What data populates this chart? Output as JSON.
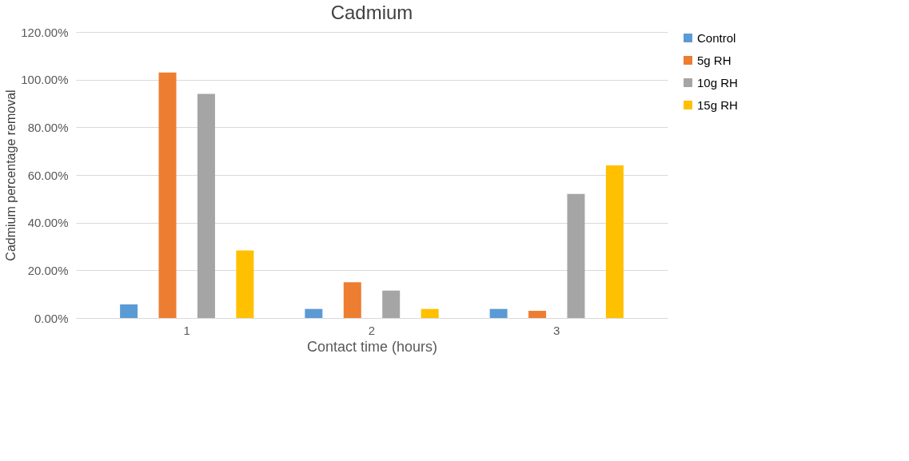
{
  "chart_data": {
    "type": "bar",
    "title": "Cadmium",
    "xlabel": "Contact time (hours)",
    "ylabel": "Cadmium percentage removal",
    "categories": [
      "1",
      "2",
      "3"
    ],
    "series": [
      {
        "name": "Control",
        "color": "#5b9bd5",
        "values": [
          5.7,
          3.8,
          3.8
        ]
      },
      {
        "name": "5g RH",
        "color": "#ed7d31",
        "values": [
          103.0,
          15.0,
          3.0
        ]
      },
      {
        "name": "10g RH",
        "color": "#a5a5a5",
        "values": [
          94.0,
          11.5,
          52.0
        ]
      },
      {
        "name": "15g RH",
        "color": "#ffc000",
        "values": [
          28.3,
          3.8,
          64.0
        ]
      }
    ],
    "ylim": [
      0,
      120
    ],
    "yticks": [
      {
        "value": 0,
        "label": "0.00%"
      },
      {
        "value": 20,
        "label": "20.00%"
      },
      {
        "value": 40,
        "label": "40.00%"
      },
      {
        "value": 60,
        "label": "60.00%"
      },
      {
        "value": 80,
        "label": "80.00%"
      },
      {
        "value": 100,
        "label": "100.00%"
      },
      {
        "value": 120,
        "label": "120.00%"
      }
    ],
    "grid": "y",
    "legend": "right"
  }
}
